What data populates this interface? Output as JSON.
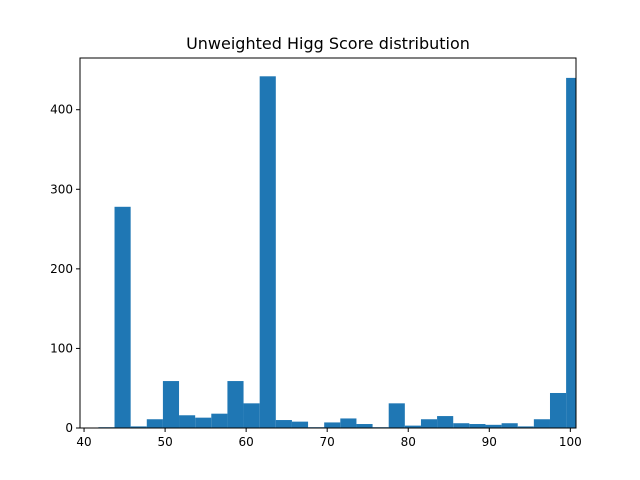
{
  "chart_data": {
    "type": "bar",
    "subtype": "histogram",
    "title": "Unweighted Higg Score distribution",
    "xlabel": "",
    "ylabel": "",
    "xlim": [
      39.5,
      100.7
    ],
    "ylim": [
      0,
      465
    ],
    "xticks": [
      40,
      50,
      60,
      70,
      80,
      90,
      100
    ],
    "yticks": [
      0,
      100,
      200,
      300,
      400
    ],
    "bar_color": "#1f77b4",
    "bins": [
      {
        "x0": 41.77,
        "x1": 43.76,
        "count": 1
      },
      {
        "x0": 43.76,
        "x1": 45.75,
        "count": 278
      },
      {
        "x0": 45.75,
        "x1": 47.74,
        "count": 2
      },
      {
        "x0": 47.74,
        "x1": 49.73,
        "count": 11
      },
      {
        "x0": 49.73,
        "x1": 51.72,
        "count": 59
      },
      {
        "x0": 51.72,
        "x1": 53.71,
        "count": 16
      },
      {
        "x0": 53.71,
        "x1": 55.7,
        "count": 13
      },
      {
        "x0": 55.7,
        "x1": 57.69,
        "count": 18
      },
      {
        "x0": 57.69,
        "x1": 59.68,
        "count": 59
      },
      {
        "x0": 59.68,
        "x1": 61.67,
        "count": 31
      },
      {
        "x0": 61.67,
        "x1": 63.66,
        "count": 442
      },
      {
        "x0": 63.66,
        "x1": 65.65,
        "count": 10
      },
      {
        "x0": 65.65,
        "x1": 67.64,
        "count": 8
      },
      {
        "x0": 67.64,
        "x1": 69.63,
        "count": 1
      },
      {
        "x0": 69.63,
        "x1": 71.62,
        "count": 7
      },
      {
        "x0": 71.62,
        "x1": 73.61,
        "count": 12
      },
      {
        "x0": 73.61,
        "x1": 75.6,
        "count": 5
      },
      {
        "x0": 75.6,
        "x1": 77.59,
        "count": 1
      },
      {
        "x0": 77.59,
        "x1": 79.58,
        "count": 31
      },
      {
        "x0": 79.58,
        "x1": 81.57,
        "count": 3
      },
      {
        "x0": 81.57,
        "x1": 83.56,
        "count": 11
      },
      {
        "x0": 83.56,
        "x1": 85.55,
        "count": 15
      },
      {
        "x0": 85.55,
        "x1": 87.54,
        "count": 6
      },
      {
        "x0": 87.54,
        "x1": 89.53,
        "count": 5
      },
      {
        "x0": 89.53,
        "x1": 91.52,
        "count": 4
      },
      {
        "x0": 91.52,
        "x1": 93.51,
        "count": 6
      },
      {
        "x0": 93.51,
        "x1": 95.5,
        "count": 2
      },
      {
        "x0": 95.5,
        "x1": 97.49,
        "count": 11
      },
      {
        "x0": 97.49,
        "x1": 99.48,
        "count": 44
      },
      {
        "x0": 99.48,
        "x1": 101.47,
        "count": 440
      }
    ]
  }
}
